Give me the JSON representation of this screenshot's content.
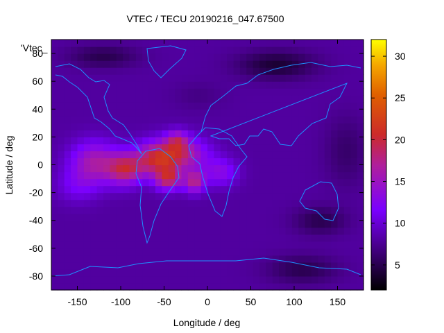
{
  "chart_data": {
    "type": "heatmap",
    "title": "VTEC / TECU 20190216_047.67500",
    "xlabel": "Longitude / deg",
    "ylabel": "Latitude / deg",
    "series_key": "'Vtec_",
    "xlim": [
      -180,
      180
    ],
    "ylim": [
      -90,
      90
    ],
    "x_ticks": [
      -150,
      -100,
      -50,
      0,
      50,
      100,
      150
    ],
    "y_ticks": [
      -80,
      -60,
      -40,
      -20,
      0,
      20,
      40,
      60,
      80
    ],
    "colorbar": {
      "min": 2,
      "max": 32,
      "ticks": [
        5,
        10,
        15,
        20,
        25,
        30
      ]
    },
    "grid": false,
    "background_level": 8,
    "features": [
      {
        "lon": -95,
        "lat": -3,
        "slon": 20,
        "slat": 11,
        "amp": 10
      },
      {
        "lon": -130,
        "lat": 2,
        "slon": 28,
        "slat": 15,
        "amp": 8
      },
      {
        "lon": -60,
        "lat": 4,
        "slon": 25,
        "slat": 12,
        "amp": 10
      },
      {
        "lon": -30,
        "lat": 8,
        "slon": 30,
        "slat": 12,
        "amp": 9
      },
      {
        "lon": -45,
        "lat": -10,
        "slon": 15,
        "slat": 8,
        "amp": 10
      },
      {
        "lon": -15,
        "lat": -12,
        "slon": 12,
        "slat": 8,
        "amp": 9
      },
      {
        "lon": -35,
        "lat": 18,
        "slon": 12,
        "slat": 7,
        "amp": 6
      },
      {
        "lon": 15,
        "lat": -5,
        "slon": 20,
        "slat": 10,
        "amp": 5
      },
      {
        "lon": -150,
        "lat": -15,
        "slon": 25,
        "slat": 12,
        "amp": 3
      },
      {
        "lon": 80,
        "lat": 72,
        "slon": 45,
        "slat": 10,
        "amp": -4
      },
      {
        "lon": -120,
        "lat": 78,
        "slon": 40,
        "slat": 8,
        "amp": -3
      },
      {
        "lon": 130,
        "lat": -40,
        "slon": 30,
        "slat": 10,
        "amp": -3
      },
      {
        "lon": 110,
        "lat": -75,
        "slon": 40,
        "slat": 10,
        "amp": -3
      },
      {
        "lon": 160,
        "lat": 10,
        "slon": 25,
        "slat": 25,
        "amp": -2
      },
      {
        "lon": -10,
        "lat": 50,
        "slon": 30,
        "slat": 10,
        "amp": -1
      }
    ],
    "coastline_color": "#1e90ff"
  }
}
